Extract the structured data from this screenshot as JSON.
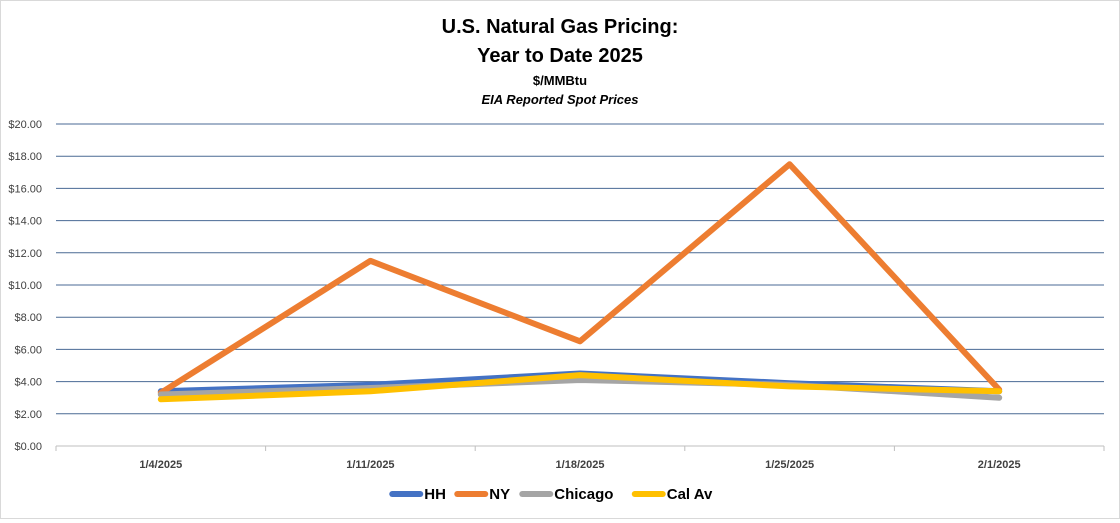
{
  "chart_data": {
    "type": "line",
    "title_line1": "U.S. Natural Gas Pricing:",
    "title_line2": "Year to Date 2025",
    "subtitle": "$/MMBtu",
    "subtitle2": "EIA Reported Spot Prices",
    "categories": [
      "1/4/2025",
      "1/11/2025",
      "1/18/2025",
      "1/25/2025",
      "2/1/2025"
    ],
    "ylim": [
      0,
      20
    ],
    "ytick_step": 2,
    "ytick_labels": [
      "$0.00",
      "$2.00",
      "$4.00",
      "$6.00",
      "$8.00",
      "$10.00",
      "$12.00",
      "$14.00",
      "$16.00",
      "$18.00",
      "$20.00"
    ],
    "grid": true,
    "legend_position": "bottom",
    "series": [
      {
        "name": "HH",
        "color": "#4472C4",
        "values": [
          3.4,
          3.8,
          4.5,
          3.9,
          3.4
        ]
      },
      {
        "name": "NY",
        "color": "#ED7D31",
        "values": [
          3.3,
          11.5,
          6.5,
          17.5,
          3.5
        ]
      },
      {
        "name": "Chicago",
        "color": "#A5A5A5",
        "values": [
          3.2,
          3.6,
          4.1,
          3.8,
          3.0
        ]
      },
      {
        "name": "Cal Av",
        "color": "#FFC000",
        "values": [
          2.9,
          3.4,
          4.4,
          3.7,
          3.4
        ]
      }
    ]
  }
}
